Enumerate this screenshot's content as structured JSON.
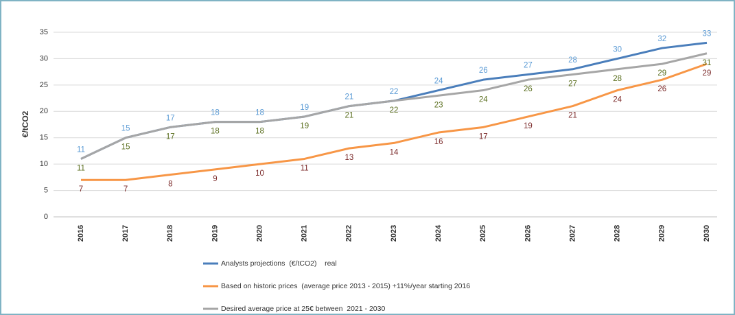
{
  "chart_data": {
    "type": "line",
    "y_label": "€/tCO2",
    "categories": [
      "2016",
      "2017",
      "2018",
      "2019",
      "2020",
      "2021",
      "2022",
      "2023",
      "2024",
      "2025",
      "2026",
      "2027",
      "2028",
      "2029",
      "2030"
    ],
    "series": [
      {
        "name": "Analysts projections  (€/tCO2)    real",
        "color": "#4a7ebb",
        "label_color": "#5b9bd5",
        "values": [
          11,
          15,
          17,
          18,
          18,
          19,
          21,
          22,
          24,
          26,
          27,
          28,
          30,
          32,
          33
        ]
      },
      {
        "name": "Based on historic prices  (average price 2013 - 2015) +11%/year starting 2016",
        "color": "#f79646",
        "label_color": "#7b2a2a",
        "values": [
          7,
          7,
          8,
          9,
          10,
          11,
          13,
          14,
          16,
          17,
          19,
          21,
          24,
          26,
          29
        ]
      },
      {
        "name": "Desired average price at 25€ between  2021 - 2030",
        "color": "#a6a6a6",
        "label_color": "#5a6e1e",
        "values": [
          11,
          15,
          17,
          18,
          18,
          19,
          21,
          22,
          23,
          24,
          26,
          27,
          28,
          29,
          31
        ]
      }
    ],
    "ylim": [
      0,
      35
    ],
    "yticks": [
      0,
      5,
      10,
      15,
      20,
      25,
      30,
      35
    ],
    "grid": true,
    "legend": "bottom"
  }
}
